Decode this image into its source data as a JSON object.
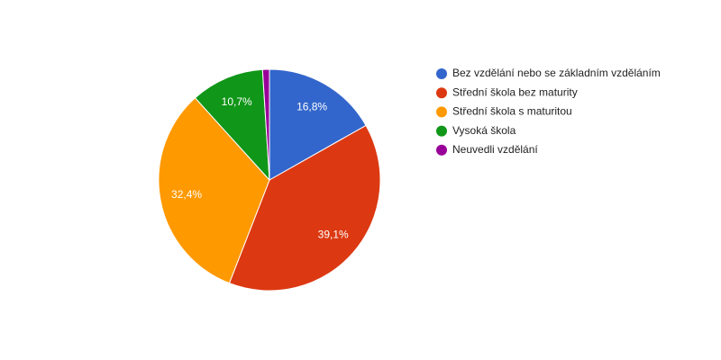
{
  "chart_data": {
    "type": "pie",
    "categories": [
      "Bez vzdělání nebo se základním vzděláním",
      "Střední škola bez maturity",
      "Střední škola s maturitou",
      "Vysoká škola",
      "Neuvedli vzdělání"
    ],
    "values": [
      16.8,
      39.1,
      32.4,
      10.7,
      1.0
    ],
    "value_labels": [
      "16,8%",
      "39,1%",
      "32,4%",
      "10,7%",
      null
    ],
    "colors": [
      "#3366cc",
      "#dc3912",
      "#ff9900",
      "#109618",
      "#990099"
    ],
    "legend": "right"
  }
}
